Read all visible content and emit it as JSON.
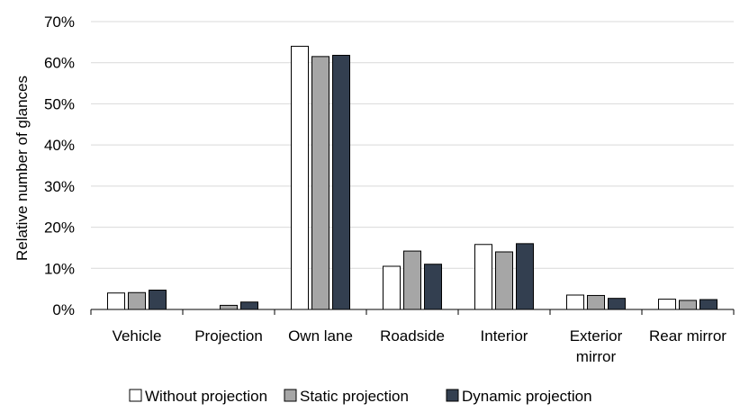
{
  "chart_data": {
    "type": "bar",
    "ylabel": "Relative number of glances",
    "xlabel": "",
    "ylim": [
      0,
      70
    ],
    "yticks": [
      0,
      10,
      20,
      30,
      40,
      50,
      60,
      70
    ],
    "ytick_suffix": "%",
    "grid": "horizontal",
    "legend_position": "bottom",
    "categories": [
      [
        "Vehicle"
      ],
      [
        "Projection"
      ],
      [
        "Own lane"
      ],
      [
        "Roadside"
      ],
      [
        "Interior"
      ],
      [
        "Exterior",
        "mirror"
      ],
      [
        "Rear mirror"
      ]
    ],
    "series": [
      {
        "name": "Without projection",
        "color": "#ffffff",
        "values": [
          4.0,
          0.0,
          64.0,
          10.5,
          15.8,
          3.5,
          2.5
        ]
      },
      {
        "name": "Static projection",
        "color": "#a6a6a6",
        "values": [
          4.1,
          1.0,
          61.5,
          14.2,
          14.0,
          3.4,
          2.2
        ]
      },
      {
        "name": "Dynamic projection",
        "color": "#333f50",
        "values": [
          4.7,
          1.8,
          61.8,
          11.0,
          16.0,
          2.7,
          2.4
        ]
      }
    ]
  }
}
